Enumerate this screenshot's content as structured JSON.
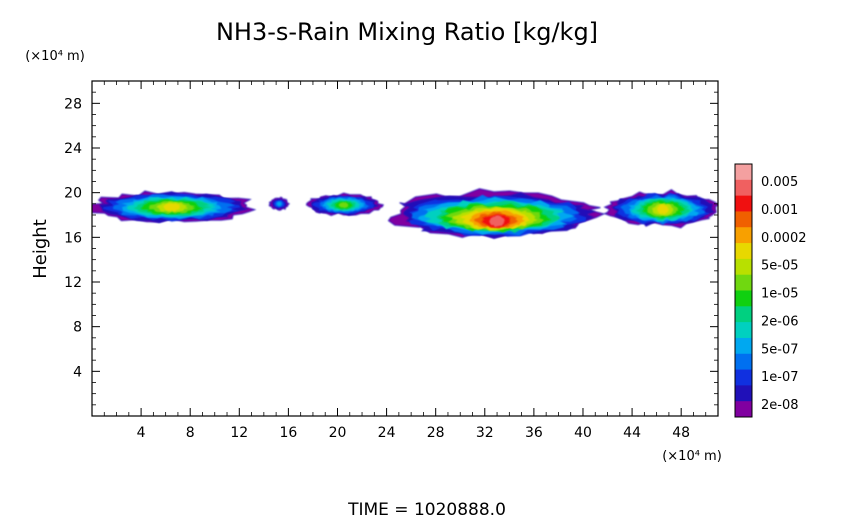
{
  "chart_data": {
    "type": "heatmap",
    "title": "NH3-s-Rain Mixing Ratio [kg/kg]",
    "ylabel": "Height",
    "x_unit": "(×10⁴ m)",
    "y_unit": "(×10⁴ m)",
    "xlim": [
      0,
      51
    ],
    "ylim": [
      0,
      30
    ],
    "x_ticks": [
      4,
      8,
      12,
      16,
      20,
      24,
      28,
      32,
      36,
      40,
      44,
      48
    ],
    "y_ticks": [
      4,
      8,
      12,
      16,
      20,
      24,
      28
    ],
    "time_label": "TIME  =  1020888.0",
    "colorbar": {
      "labels": [
        "0.005",
        "0.001",
        "0.0002",
        "5e-05",
        "1e-05",
        "2e-06",
        "5e-07",
        "1e-07",
        "2e-08"
      ],
      "colors": [
        "#f4a0a0",
        "#f06060",
        "#f01010",
        "#f06000",
        "#f8a000",
        "#e8d800",
        "#b8e000",
        "#70d810",
        "#10d010",
        "#00d080",
        "#00d0c0",
        "#00a8f0",
        "#0070f0",
        "#1030e0",
        "#2010b8",
        "#8000a0"
      ]
    },
    "blobs": [
      {
        "x": [
          0,
          13
        ],
        "y": [
          17.4,
          20.0
        ],
        "peak": 5,
        "level": "5e-05"
      },
      {
        "x": [
          14.5,
          16.0
        ],
        "y": [
          18.5,
          19.5
        ],
        "peak": 11,
        "level": "1e-07"
      },
      {
        "x": [
          17.5,
          23.5
        ],
        "y": [
          18.0,
          19.8
        ],
        "peak": 7,
        "level": "2e-06"
      },
      {
        "x": [
          24.5,
          41.0
        ],
        "y": [
          16.2,
          20.0
        ],
        "peak": 1,
        "level": "0.001"
      },
      {
        "x": [
          42.0,
          51.0
        ],
        "y": [
          17.0,
          20.0
        ],
        "peak": 5,
        "level": "5e-05"
      }
    ]
  }
}
